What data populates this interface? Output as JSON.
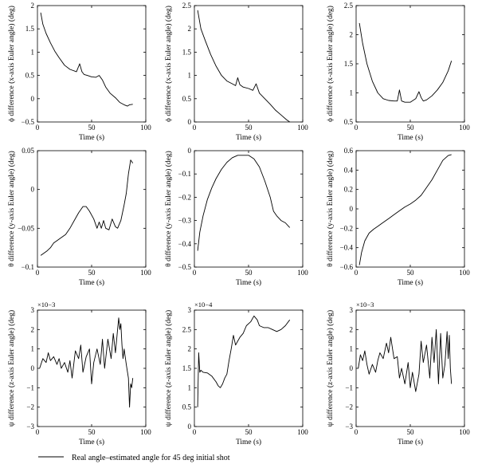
{
  "legend": {
    "label": "Real angle–estimated angle for 45 deg initial shot"
  },
  "chart_data": [
    {
      "type": "line",
      "xlabel": "Time (s)",
      "ylabel": "ϕ difference (x-axis Euler angle) (deg)",
      "xlim": [
        0,
        100
      ],
      "ylim": [
        -0.5,
        2
      ],
      "xticks": [
        0,
        50,
        100
      ],
      "yticks": [
        -0.5,
        0,
        0.5,
        1,
        1.5,
        2
      ],
      "xtick_labels": [
        "0",
        "50",
        "100"
      ],
      "ytick_labels": [
        "−0.5",
        "0",
        "0.5",
        "1",
        "1.5",
        "2"
      ],
      "series": [
        {
          "x": [
            3,
            5,
            8,
            12,
            16,
            20,
            25,
            30,
            36,
            39,
            41,
            43,
            46,
            50,
            54,
            57,
            60,
            63,
            67,
            72,
            76,
            80,
            83,
            85,
            88
          ],
          "y": [
            1.85,
            1.6,
            1.4,
            1.2,
            1.02,
            0.88,
            0.72,
            0.63,
            0.58,
            0.75,
            0.58,
            0.52,
            0.5,
            0.47,
            0.46,
            0.5,
            0.4,
            0.25,
            0.12,
            0.02,
            -0.08,
            -0.13,
            -0.16,
            -0.13,
            -0.12
          ]
        }
      ]
    },
    {
      "type": "line",
      "xlabel": "Time (s)",
      "ylabel": "ϕ difference (x-axis Euler angle) (deg)",
      "xlim": [
        0,
        100
      ],
      "ylim": [
        0,
        2.5
      ],
      "xticks": [
        0,
        50,
        100
      ],
      "yticks": [
        0,
        0.5,
        1,
        1.5,
        2,
        2.5
      ],
      "xtick_labels": [
        "0",
        "50",
        "100"
      ],
      "ytick_labels": [
        "0",
        "0.5",
        "1",
        "1.5",
        "2",
        "2.5"
      ],
      "series": [
        {
          "x": [
            3,
            6,
            10,
            15,
            20,
            25,
            30,
            35,
            38,
            40,
            42,
            45,
            50,
            54,
            57,
            60,
            65,
            70,
            75,
            80,
            85,
            88
          ],
          "y": [
            2.4,
            2.0,
            1.75,
            1.45,
            1.2,
            1.0,
            0.88,
            0.82,
            0.78,
            0.95,
            0.8,
            0.75,
            0.72,
            0.68,
            0.82,
            0.62,
            0.5,
            0.38,
            0.25,
            0.15,
            0.05,
            0.0
          ]
        }
      ]
    },
    {
      "type": "line",
      "xlabel": "Time (s)",
      "ylabel": "ϕ difference (x-axis Euler angle) (deg)",
      "xlim": [
        0,
        100
      ],
      "ylim": [
        0.5,
        2.5
      ],
      "xticks": [
        0,
        50,
        100
      ],
      "yticks": [
        0.5,
        1,
        1.5,
        2,
        2.5
      ],
      "xtick_labels": [
        "0",
        "50",
        "100"
      ],
      "ytick_labels": [
        "0.5",
        "1",
        "1.5",
        "2",
        "2.5"
      ],
      "series": [
        {
          "x": [
            3,
            6,
            10,
            15,
            20,
            25,
            30,
            35,
            38,
            40,
            42,
            45,
            50,
            55,
            58,
            60,
            62,
            65,
            70,
            75,
            80,
            85,
            88
          ],
          "y": [
            2.2,
            1.85,
            1.5,
            1.2,
            1.0,
            0.9,
            0.87,
            0.86,
            0.86,
            1.05,
            0.86,
            0.84,
            0.84,
            0.9,
            1.02,
            0.92,
            0.86,
            0.88,
            0.95,
            1.05,
            1.18,
            1.38,
            1.55
          ]
        }
      ]
    },
    {
      "type": "line",
      "xlabel": "Time (s)",
      "ylabel": "θ difference (y-axis Euler angle) (deg)",
      "xlim": [
        0,
        100
      ],
      "ylim": [
        -0.1,
        0.05
      ],
      "xticks": [
        0,
        50,
        100
      ],
      "yticks": [
        -0.1,
        -0.05,
        0,
        0.05
      ],
      "xtick_labels": [
        "0",
        "50",
        "100"
      ],
      "ytick_labels": [
        "−0.1",
        "−0.05",
        "0",
        "0.05"
      ],
      "series": [
        {
          "x": [
            3,
            6,
            9,
            12,
            15,
            18,
            22,
            26,
            30,
            34,
            38,
            42,
            45,
            48,
            52,
            55,
            57,
            59,
            61,
            63,
            66,
            69,
            72,
            74,
            77,
            80,
            82,
            84,
            86,
            88
          ],
          "y": [
            -0.085,
            -0.082,
            -0.079,
            -0.075,
            -0.069,
            -0.066,
            -0.062,
            -0.058,
            -0.05,
            -0.04,
            -0.03,
            -0.022,
            -0.022,
            -0.028,
            -0.038,
            -0.05,
            -0.042,
            -0.05,
            -0.04,
            -0.05,
            -0.052,
            -0.038,
            -0.048,
            -0.05,
            -0.04,
            -0.02,
            -0.005,
            0.02,
            0.038,
            0.034
          ]
        }
      ]
    },
    {
      "type": "line",
      "xlabel": "Time (s)",
      "ylabel": "θ difference (y-axis Euler angle) (deg)",
      "xlim": [
        0,
        100
      ],
      "ylim": [
        -0.5,
        0
      ],
      "xticks": [
        0,
        50,
        100
      ],
      "yticks": [
        -0.5,
        -0.4,
        -0.3,
        -0.2,
        -0.1,
        0
      ],
      "xtick_labels": [
        "0",
        "50",
        "100"
      ],
      "ytick_labels": [
        "−0.5",
        "−0.4",
        "−0.3",
        "−0.2",
        "−0.1",
        "0"
      ],
      "series": [
        {
          "x": [
            3,
            5,
            8,
            12,
            16,
            20,
            25,
            30,
            35,
            40,
            45,
            50,
            55,
            60,
            65,
            70,
            73,
            76,
            80,
            84,
            88
          ],
          "y": [
            -0.43,
            -0.35,
            -0.28,
            -0.21,
            -0.16,
            -0.12,
            -0.08,
            -0.05,
            -0.03,
            -0.02,
            -0.02,
            -0.02,
            -0.035,
            -0.07,
            -0.13,
            -0.2,
            -0.26,
            -0.28,
            -0.3,
            -0.31,
            -0.33
          ]
        }
      ]
    },
    {
      "type": "line",
      "xlabel": "Time (s)",
      "ylabel": "θ difference (y-axis Euler angle) (deg)",
      "xlim": [
        0,
        100
      ],
      "ylim": [
        -0.6,
        0.6
      ],
      "xticks": [
        0,
        50,
        100
      ],
      "yticks": [
        -0.6,
        -0.4,
        -0.2,
        0,
        0.2,
        0.4,
        0.6
      ],
      "xtick_labels": [
        "0",
        "50",
        "100"
      ],
      "ytick_labels": [
        "−0.6",
        "−0.4",
        "−0.2",
        "0",
        "0.2",
        "0.4",
        "0.6"
      ],
      "series": [
        {
          "x": [
            3,
            5,
            8,
            12,
            16,
            20,
            25,
            30,
            35,
            40,
            45,
            50,
            55,
            60,
            65,
            70,
            75,
            80,
            85,
            88
          ],
          "y": [
            -0.58,
            -0.45,
            -0.33,
            -0.25,
            -0.21,
            -0.18,
            -0.14,
            -0.1,
            -0.06,
            -0.02,
            0.02,
            0.05,
            0.09,
            0.14,
            0.22,
            0.3,
            0.4,
            0.5,
            0.55,
            0.56
          ]
        }
      ]
    },
    {
      "type": "line",
      "xlabel": "Time (s)",
      "ylabel": "ψ difference (z-axis Euler angle) (deg)",
      "scale_label": "×10−3",
      "xlim": [
        0,
        100
      ],
      "ylim": [
        -3,
        3
      ],
      "xticks": [
        0,
        50,
        100
      ],
      "yticks": [
        -3,
        -2,
        -1,
        0,
        1,
        2,
        3
      ],
      "xtick_labels": [
        "0",
        "50",
        "100"
      ],
      "ytick_labels": [
        "−3",
        "−2",
        "−1",
        "0",
        "1",
        "2",
        "3"
      ],
      "series": [
        {
          "x": [
            2,
            5,
            8,
            10,
            12,
            15,
            18,
            20,
            22,
            25,
            28,
            30,
            32,
            35,
            38,
            40,
            42,
            45,
            48,
            50,
            52,
            55,
            58,
            60,
            62,
            65,
            68,
            70,
            72,
            74,
            75,
            76,
            77,
            78,
            79,
            80,
            82,
            84,
            85,
            86,
            87,
            88
          ],
          "y": [
            0.0,
            0.5,
            0.3,
            0.8,
            0.4,
            0.6,
            0.2,
            0.5,
            0.0,
            0.3,
            -0.2,
            0.4,
            -0.5,
            0.9,
            0.5,
            1.2,
            -0.2,
            0.6,
            1.0,
            -0.8,
            0.3,
            1.0,
            0.2,
            1.5,
            0.0,
            1.5,
            0.5,
            1.8,
            0.8,
            2.0,
            2.6,
            2.0,
            2.3,
            1.2,
            0.5,
            1.0,
            0.2,
            -0.5,
            -2.0,
            -0.8,
            -1.0,
            -0.5
          ]
        }
      ]
    },
    {
      "type": "line",
      "xlabel": "Time (s)",
      "ylabel": "ψ difference (z-axis Euler angle) (deg)",
      "scale_label": "×10−4",
      "xlim": [
        0,
        100
      ],
      "ylim": [
        0,
        3
      ],
      "xticks": [
        0,
        50,
        100
      ],
      "yticks": [
        0,
        0.5,
        1,
        1.5,
        2,
        2.5,
        3
      ],
      "xtick_labels": [
        "0",
        "50",
        "100"
      ],
      "ytick_labels": [
        "0",
        "0.5",
        "1",
        "1.5",
        "2",
        "2.5",
        "3"
      ],
      "series": [
        {
          "x": [
            3,
            4,
            5,
            6,
            8,
            12,
            16,
            20,
            22,
            24,
            26,
            28,
            30,
            32,
            34,
            36,
            38,
            40,
            42,
            45,
            48,
            52,
            55,
            58,
            60,
            64,
            68,
            72,
            76,
            80,
            84,
            88
          ],
          "y": [
            0.5,
            1.9,
            1.4,
            1.45,
            1.4,
            1.38,
            1.3,
            1.15,
            1.05,
            1.0,
            1.1,
            1.25,
            1.35,
            1.7,
            2.0,
            2.35,
            2.1,
            2.2,
            2.3,
            2.4,
            2.6,
            2.7,
            2.85,
            2.75,
            2.6,
            2.55,
            2.55,
            2.5,
            2.45,
            2.5,
            2.6,
            2.75
          ]
        }
      ]
    },
    {
      "type": "line",
      "xlabel": "Time (s)",
      "ylabel": "ψ difference (z-axis Euler angle) (deg)",
      "scale_label": "×10−3",
      "xlim": [
        0,
        100
      ],
      "ylim": [
        -3,
        3
      ],
      "xticks": [
        0,
        50,
        100
      ],
      "yticks": [
        -3,
        -2,
        -1,
        0,
        1,
        2,
        3
      ],
      "xtick_labels": [
        "0",
        "50",
        "100"
      ],
      "ytick_labels": [
        "−3",
        "−2",
        "−1",
        "0",
        "1",
        "2",
        "3"
      ],
      "series": [
        {
          "x": [
            2,
            4,
            6,
            8,
            10,
            12,
            15,
            18,
            20,
            22,
            25,
            28,
            30,
            32,
            35,
            38,
            40,
            42,
            45,
            48,
            50,
            52,
            55,
            58,
            60,
            62,
            65,
            68,
            70,
            72,
            74,
            76,
            78,
            80,
            82,
            84,
            85,
            86,
            87,
            88
          ],
          "y": [
            0.0,
            0.7,
            0.4,
            0.9,
            0.2,
            -0.3,
            0.2,
            -0.2,
            0.4,
            0.8,
            0.5,
            1.3,
            0.8,
            1.6,
            0.5,
            0.6,
            -0.5,
            0.0,
            -0.8,
            0.3,
            -1.0,
            -0.2,
            -1.2,
            -0.3,
            1.4,
            0.3,
            1.2,
            -0.5,
            1.6,
            0.3,
            2.0,
            -0.8,
            1.8,
            -0.5,
            0.2,
            1.9,
            0.5,
            1.7,
            0.0,
            -0.8
          ]
        }
      ]
    }
  ]
}
